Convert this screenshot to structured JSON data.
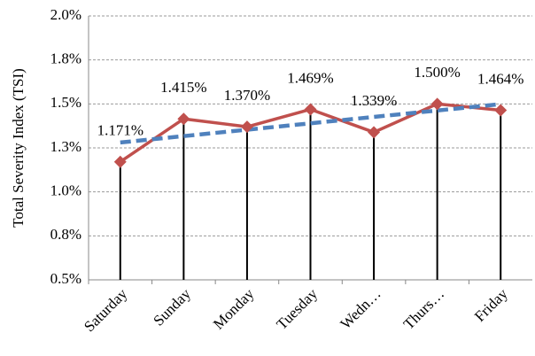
{
  "chart_data": {
    "type": "line",
    "y_label": "Total Severity Index (TSI)",
    "categories": [
      "Saturday",
      "Sunday",
      "Monday",
      "Tuesday",
      "Wedn…",
      "Thurs…",
      "Friday"
    ],
    "values": [
      1.171,
      1.415,
      1.37,
      1.469,
      1.339,
      1.5,
      1.464
    ],
    "value_labels": [
      "1.171%",
      "1.415%",
      "1.370%",
      "1.469%",
      "1.339%",
      "1.500%",
      "1.464%"
    ],
    "color": "#c0504d",
    "trendline": "linear",
    "trendline_color": "#4f81bd",
    "drop_lines": true,
    "ylim": [
      0.5,
      2.0
    ],
    "yticks": [
      {
        "value": 0.5,
        "label": "0.5%"
      },
      {
        "value": 0.75,
        "label": "0.8%"
      },
      {
        "value": 1.0,
        "label": "1.0%"
      },
      {
        "value": 1.25,
        "label": "1.3%"
      },
      {
        "value": 1.5,
        "label": "1.5%"
      },
      {
        "value": 1.75,
        "label": "1.8%"
      },
      {
        "value": 2.0,
        "label": "2.0%"
      }
    ],
    "grid": true
  }
}
